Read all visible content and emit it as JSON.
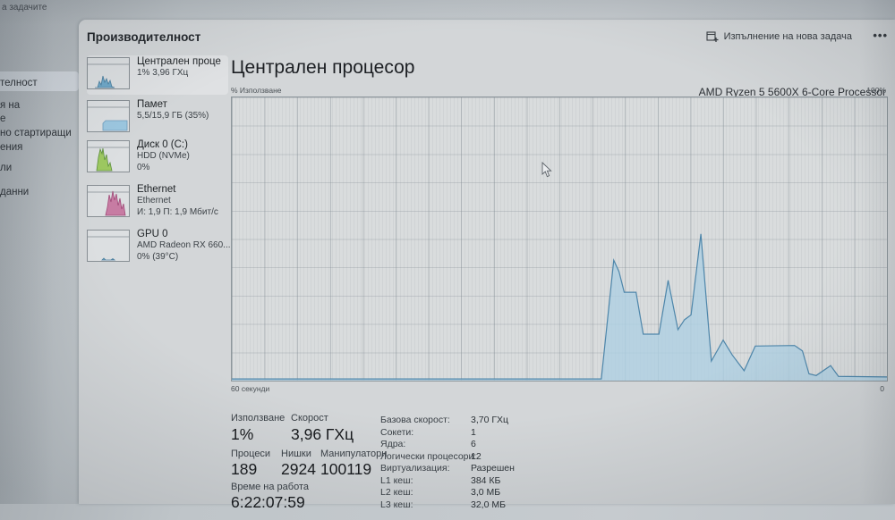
{
  "window": {
    "title_fragment": "а задачите"
  },
  "left_nav": {
    "fragments": [
      {
        "text": "телност",
        "highlighted": true
      },
      {
        "text": "я на"
      },
      {
        "text": "е"
      },
      {
        "text": "но стартиращи"
      },
      {
        "text": "ения"
      },
      {
        "text": "ли"
      },
      {
        "text": "данни"
      }
    ]
  },
  "header": {
    "title": "Производителност",
    "run_new_task_label": "Изпълнение на нова задача",
    "more_label": "•••"
  },
  "sidebar": {
    "items": [
      {
        "title": "Централен проце",
        "sub1": "1% 3,96 ГХц",
        "sub2": ""
      },
      {
        "title": "Памет",
        "sub1": "5,5/15,9 ГБ (35%)",
        "sub2": ""
      },
      {
        "title": "Диск 0 (C:)",
        "sub1": "HDD (NVMe)",
        "sub2": "0%"
      },
      {
        "title": "Ethernet",
        "sub1": "Ethernet",
        "sub2": "И: 1,9 П: 1,9 Мбит/с"
      },
      {
        "title": "GPU 0",
        "sub1": "AMD Radeon RX 660...",
        "sub2": "0% (39°C)"
      }
    ]
  },
  "main": {
    "title": "Централен процесор",
    "subtitle": "AMD Ryzen 5 5600X 6-Core Processor",
    "axis": {
      "top_left": "% Използване",
      "top_right": "100%",
      "bottom_left": "60 секунди",
      "bottom_right": "0"
    },
    "stats": {
      "usage_label": "Използване",
      "usage_value": "1%",
      "speed_label": "Скорост",
      "speed_value": "3,96 ГХц",
      "processes_label": "Процеси",
      "processes_value": "189",
      "threads_label": "Нишки",
      "threads_value": "2924",
      "handles_label": "Манипулатори",
      "handles_value": "100119",
      "uptime_label": "Време на работа",
      "uptime_value": "6:22:07:59",
      "right_rows": [
        {
          "label": "Базова скорост:",
          "value": "3,70 ГХц"
        },
        {
          "label": "Сокети:",
          "value": "1"
        },
        {
          "label": "Ядра:",
          "value": "6"
        },
        {
          "label": "Логически процесори:",
          "value": "12"
        },
        {
          "label": "Виртуализация:",
          "value": "Разрешен"
        },
        {
          "label": "L1 кеш:",
          "value": "384 КБ"
        },
        {
          "label": "L2 кеш:",
          "value": "3,0 МБ"
        },
        {
          "label": "L3 кеш:",
          "value": "32,0 МБ"
        }
      ]
    }
  },
  "chart_data": {
    "type": "area",
    "title": "Централен процесор — % Използване (60 секунди)",
    "xlabel": "60 секунди",
    "ylabel": "% Използване",
    "ylim": [
      0,
      100
    ],
    "x_range_seconds": 60,
    "grid": true,
    "points_format": "[percent_of_plot_width_from_left, cpu_usage_percent]",
    "series": [
      {
        "name": "CPU %",
        "points": [
          [
            0,
            0.6
          ],
          [
            56.4,
            0.6
          ],
          [
            58.3,
            42.5
          ],
          [
            59.1,
            38.5
          ],
          [
            59.9,
            31.2
          ],
          [
            61.7,
            31.2
          ],
          [
            62.8,
            16.4
          ],
          [
            65.2,
            16.4
          ],
          [
            66.6,
            35.4
          ],
          [
            68.1,
            18.0
          ],
          [
            69.1,
            21.5
          ],
          [
            70.1,
            23.2
          ],
          [
            71.6,
            51.8
          ],
          [
            73.2,
            6.9
          ],
          [
            75.0,
            14.3
          ],
          [
            76.4,
            9.0
          ],
          [
            78.2,
            3.5
          ],
          [
            79.9,
            12.2
          ],
          [
            85.9,
            12.4
          ],
          [
            87.1,
            10.5
          ],
          [
            88.1,
            2.4
          ],
          [
            89.2,
            1.8
          ],
          [
            91.4,
            5.3
          ],
          [
            92.6,
            1.5
          ],
          [
            100,
            1.3
          ]
        ]
      }
    ]
  },
  "colors": {
    "chart_line": "#4e86aa",
    "chart_fill": "#aed0e2",
    "mem_blue": "#9cc7e0",
    "disk_green": "#9dc860",
    "disk_green_dark": "#5d8f3d",
    "net_magenta": "#c77ca3",
    "net_magenta_dark": "#a04a78",
    "cpu_blue": "#6fa8c8",
    "cpu_blue_dark": "#4d7f9e"
  }
}
